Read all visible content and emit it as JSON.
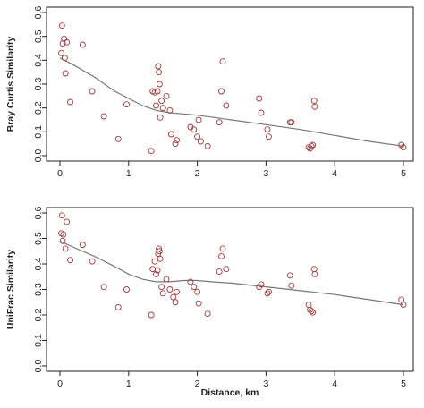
{
  "chart_data": [
    {
      "type": "scatter",
      "ylabel": "Bray Curtis Similarity",
      "xlabel": "",
      "xlim": [
        0,
        5
      ],
      "ylim": [
        0,
        0.6
      ],
      "xticks": [
        0,
        1,
        2,
        3,
        4,
        5
      ],
      "yticks": [
        0.0,
        0.1,
        0.2,
        0.3,
        0.4,
        0.5,
        0.6
      ],
      "ytick_labels": [
        "0.0",
        "0.1",
        "0.2",
        "0.3",
        "0.4",
        "0.5",
        "0.6"
      ],
      "points": {
        "x": [
          0.02,
          0.03,
          0.04,
          0.06,
          0.1,
          0.07,
          0.08,
          0.15,
          0.33,
          0.47,
          0.64,
          0.85,
          0.97,
          1.33,
          1.35,
          1.38,
          1.4,
          1.42,
          1.43,
          1.44,
          1.45,
          1.46,
          1.48,
          1.5,
          1.55,
          1.6,
          1.62,
          1.68,
          1.7,
          1.9,
          1.95,
          2.0,
          2.02,
          2.05,
          2.15,
          2.32,
          2.35,
          2.37,
          2.42,
          2.9,
          2.93,
          3.02,
          3.04,
          3.35,
          3.37,
          3.62,
          3.64,
          3.66,
          3.68,
          3.7,
          3.71,
          4.97,
          5.0
        ],
        "y": [
          0.43,
          0.545,
          0.47,
          0.49,
          0.475,
          0.41,
          0.345,
          0.225,
          0.465,
          0.27,
          0.165,
          0.07,
          0.215,
          0.02,
          0.27,
          0.265,
          0.21,
          0.27,
          0.375,
          0.35,
          0.3,
          0.16,
          0.23,
          0.2,
          0.25,
          0.19,
          0.09,
          0.05,
          0.065,
          0.12,
          0.11,
          0.08,
          0.15,
          0.06,
          0.04,
          0.14,
          0.27,
          0.395,
          0.21,
          0.24,
          0.18,
          0.11,
          0.08,
          0.14,
          0.14,
          0.035,
          0.03,
          0.04,
          0.045,
          0.23,
          0.205,
          0.045,
          0.035
        ]
      },
      "trend": {
        "x": [
          0.0,
          0.2,
          0.5,
          0.8,
          1.0,
          1.2,
          1.4,
          1.6,
          1.8,
          2.0,
          2.5,
          3.0,
          3.5,
          4.0,
          4.5,
          5.0
        ],
        "y": [
          0.41,
          0.38,
          0.33,
          0.27,
          0.24,
          0.21,
          0.19,
          0.18,
          0.175,
          0.17,
          0.15,
          0.13,
          0.11,
          0.085,
          0.06,
          0.04
        ]
      }
    },
    {
      "type": "scatter",
      "ylabel": "UniFrac Similarity",
      "xlabel": "Distance, km",
      "xlim": [
        0,
        5
      ],
      "ylim": [
        0,
        0.6
      ],
      "xticks": [
        0,
        1,
        2,
        3,
        4,
        5
      ],
      "yticks": [
        0.0,
        0.1,
        0.2,
        0.3,
        0.4,
        0.5,
        0.6
      ],
      "ytick_labels": [
        "0.0",
        "0.1",
        "0.2",
        "0.3",
        "0.4",
        "0.5",
        "0.6"
      ],
      "points": {
        "x": [
          0.02,
          0.03,
          0.04,
          0.05,
          0.08,
          0.1,
          0.15,
          0.33,
          0.47,
          0.64,
          0.85,
          0.97,
          1.33,
          1.35,
          1.38,
          1.4,
          1.42,
          1.43,
          1.44,
          1.45,
          1.46,
          1.48,
          1.5,
          1.55,
          1.6,
          1.65,
          1.68,
          1.7,
          1.9,
          1.95,
          2.0,
          2.02,
          2.15,
          2.32,
          2.35,
          2.37,
          2.42,
          2.9,
          2.93,
          3.02,
          3.04,
          3.35,
          3.37,
          3.62,
          3.64,
          3.66,
          3.68,
          3.7,
          3.71,
          4.97,
          5.0
        ],
        "y": [
          0.52,
          0.59,
          0.49,
          0.515,
          0.46,
          0.565,
          0.415,
          0.475,
          0.41,
          0.31,
          0.23,
          0.3,
          0.2,
          0.38,
          0.41,
          0.36,
          0.375,
          0.44,
          0.46,
          0.45,
          0.42,
          0.31,
          0.285,
          0.34,
          0.3,
          0.27,
          0.25,
          0.29,
          0.33,
          0.31,
          0.29,
          0.245,
          0.205,
          0.37,
          0.43,
          0.46,
          0.38,
          0.31,
          0.32,
          0.285,
          0.29,
          0.355,
          0.315,
          0.24,
          0.22,
          0.215,
          0.21,
          0.38,
          0.36,
          0.26,
          0.24
        ]
      },
      "trend": {
        "x": [
          0.0,
          0.2,
          0.5,
          0.8,
          1.0,
          1.2,
          1.4,
          1.6,
          1.8,
          2.0,
          2.2,
          2.5,
          3.0,
          3.5,
          4.0,
          4.5,
          5.0
        ],
        "y": [
          0.49,
          0.465,
          0.43,
          0.39,
          0.36,
          0.34,
          0.33,
          0.33,
          0.335,
          0.335,
          0.33,
          0.325,
          0.31,
          0.295,
          0.28,
          0.26,
          0.24
        ]
      }
    }
  ]
}
